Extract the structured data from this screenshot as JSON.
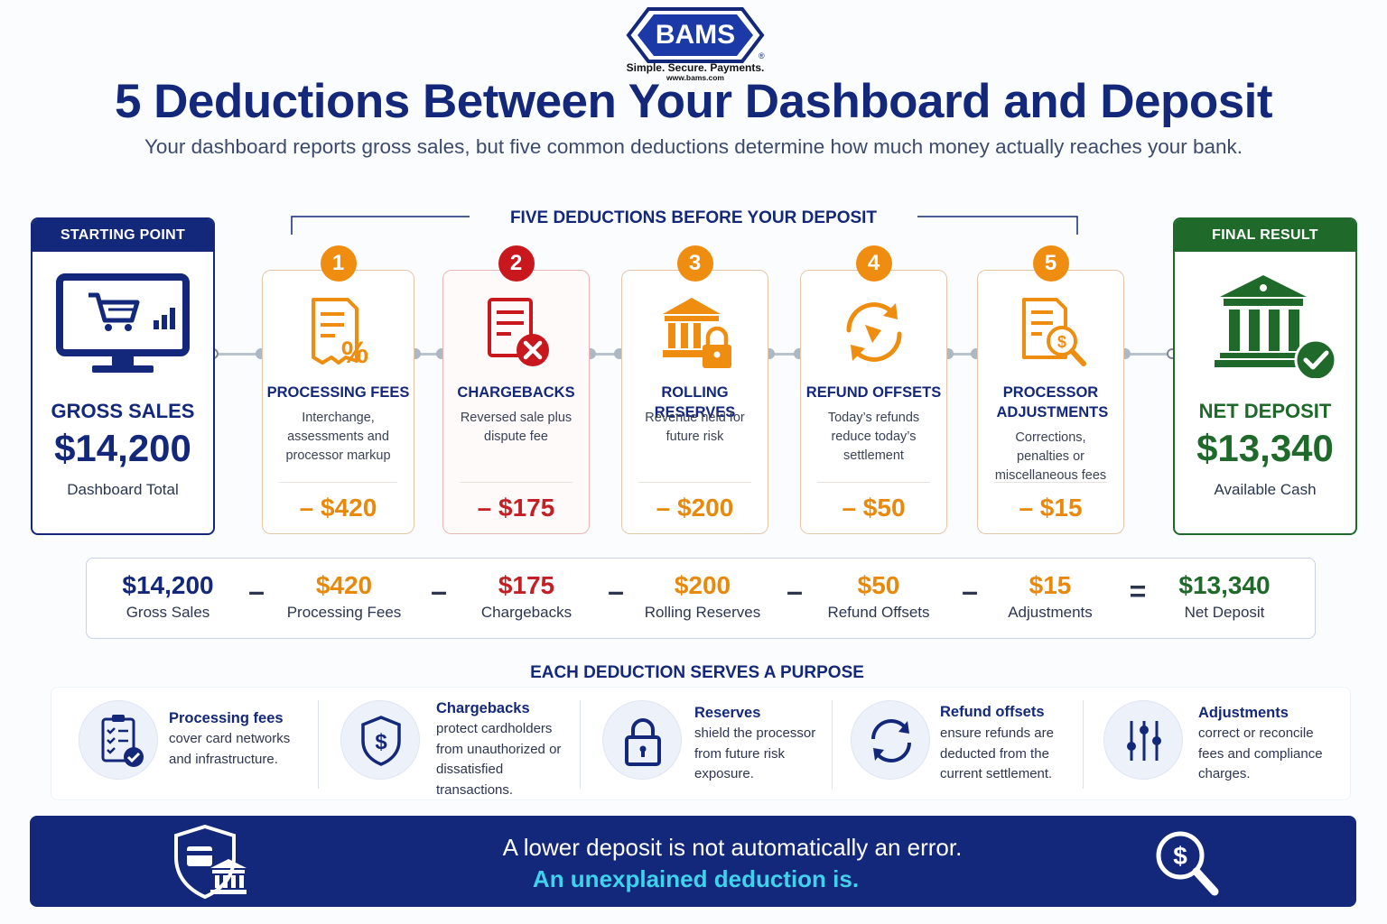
{
  "brand": {
    "logo_text": "BAMS",
    "registered_mark": "®",
    "tagline": "Simple. Secure. Payments.",
    "url": "www.bams.com",
    "primary_color": "#13287a"
  },
  "header": {
    "title": "5 Deductions Between Your Dashboard and Deposit",
    "subtitle": "Your dashboard reports gross sales, but five common deductions determine how much money actually reaches your bank."
  },
  "flow": {
    "bracket_label": "FIVE DEDUCTIONS BEFORE YOUR DEPOSIT",
    "start": {
      "header": "STARTING POINT",
      "icon": "monitor-cart-icon",
      "label": "GROSS SALES",
      "amount": "$14,200",
      "caption": "Dashboard Total",
      "color": "#13287a"
    },
    "final": {
      "header": "FINAL RESULT",
      "icon": "bank-check-icon",
      "label": "NET DEPOSIT",
      "amount": "$13,340",
      "caption": "Available Cash",
      "color": "#1f6a2a"
    },
    "deductions": [
      {
        "number": "1",
        "icon": "fee-percent-document-icon",
        "title": "PROCESSING FEES",
        "description": "Interchange, assessments and processor markup",
        "amount": "– $420",
        "color": "#e8890c"
      },
      {
        "number": "2",
        "icon": "document-x-icon",
        "title": "CHARGEBACKS",
        "description": "Reversed sale plus dispute fee",
        "amount": "– $175",
        "color": "#c41f24"
      },
      {
        "number": "3",
        "icon": "bank-lock-icon",
        "title": "ROLLING RESERVES",
        "description": "Revenue held for future risk",
        "amount": "– $200",
        "color": "#e8890c"
      },
      {
        "number": "4",
        "icon": "refund-cycle-icon",
        "title": "REFUND OFFSETS",
        "description": "Today’s refunds reduce today’s settlement",
        "amount": "– $50",
        "color": "#e8890c"
      },
      {
        "number": "5",
        "icon": "document-search-dollar-icon",
        "title": "PROCESSOR ADJUSTMENTS",
        "description": "Corrections, penalties or miscellaneous fees",
        "amount": "– $15",
        "color": "#e8890c"
      }
    ]
  },
  "equation": {
    "items": [
      {
        "value": "$14,200",
        "label": "Gross Sales"
      },
      {
        "value": "$420",
        "label": "Processing Fees"
      },
      {
        "value": "$175",
        "label": "Chargebacks"
      },
      {
        "value": "$200",
        "label": "Rolling Reserves"
      },
      {
        "value": "$50",
        "label": "Refund Offsets"
      },
      {
        "value": "$15",
        "label": "Adjustments"
      },
      {
        "value": "$13,340",
        "label": "Net Deposit"
      }
    ],
    "minus": "–",
    "equals": "="
  },
  "purpose": {
    "heading": "EACH DEDUCTION SERVES A PURPOSE",
    "items": [
      {
        "icon": "clipboard-check-icon",
        "title": "Processing fees",
        "text": "cover card networks and infrastructure."
      },
      {
        "icon": "shield-dollar-icon",
        "title": "Chargebacks",
        "text": "protect cardholders from unauthorized or dissatisfied transactions."
      },
      {
        "icon": "padlock-icon",
        "title": "Reserves",
        "text": "shield the processor from future risk exposure."
      },
      {
        "icon": "refresh-arrows-icon",
        "title": "Refund offsets",
        "text": "ensure refunds are deducted from the current settlement."
      },
      {
        "icon": "sliders-icon",
        "title": "Adjustments",
        "text": "correct or reconcile fees and compliance charges."
      }
    ]
  },
  "banner": {
    "line1": "A lower deposit is not automatically an error.",
    "line2": "An unexplained deduction is.",
    "accent_color": "#3fd2ec"
  }
}
